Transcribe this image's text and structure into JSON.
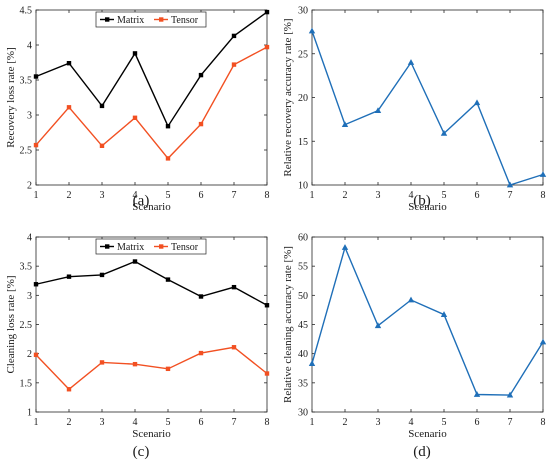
{
  "colors": {
    "matrix": "#000000",
    "tensor": "#f25022",
    "relative": "#1f6fb8"
  },
  "chart_data": [
    {
      "id": "a",
      "type": "line",
      "panel_label": "(a)",
      "xlabel": "Scenario",
      "ylabel": "Recovery loss rate [%]",
      "x": [
        1,
        2,
        3,
        4,
        5,
        6,
        7,
        8
      ],
      "xlim": [
        1,
        8
      ],
      "ylim": [
        2,
        4.5
      ],
      "yticks": [
        2,
        2.5,
        3,
        3.5,
        4,
        4.5
      ],
      "ytick_labels": [
        "2",
        "2.5",
        "3",
        "3.5",
        "4",
        "4.5"
      ],
      "legend_position": "top-center",
      "series": [
        {
          "name": "Matrix",
          "color": "#000000",
          "marker": "square",
          "values": [
            3.55,
            3.74,
            3.13,
            3.88,
            2.84,
            3.57,
            4.13,
            4.47
          ]
        },
        {
          "name": "Tensor",
          "color": "#f25022",
          "marker": "square",
          "values": [
            2.57,
            3.11,
            2.56,
            2.96,
            2.38,
            2.87,
            3.72,
            3.97
          ]
        }
      ]
    },
    {
      "id": "b",
      "type": "line",
      "panel_label": "(b)",
      "xlabel": "Scenario",
      "ylabel": "Relative recovery accuracy rate [%]",
      "x": [
        1,
        2,
        3,
        4,
        5,
        6,
        7,
        8
      ],
      "xlim": [
        1,
        8
      ],
      "ylim": [
        10,
        30
      ],
      "yticks": [
        10,
        15,
        20,
        25,
        30
      ],
      "ytick_labels": [
        "10",
        "15",
        "20",
        "25",
        "30"
      ],
      "series": [
        {
          "color": "#1f6fb8",
          "marker": "triangle",
          "values": [
            27.6,
            16.9,
            18.5,
            24.0,
            15.9,
            19.4,
            10.0,
            11.2
          ]
        }
      ]
    },
    {
      "id": "c",
      "type": "line",
      "panel_label": "(c)",
      "xlabel": "Scenario",
      "ylabel": "Cleaning loss rate [%]",
      "x": [
        1,
        2,
        3,
        4,
        5,
        6,
        7,
        8
      ],
      "xlim": [
        1,
        8
      ],
      "ylim": [
        1,
        4
      ],
      "yticks": [
        1,
        1.5,
        2,
        2.5,
        3,
        3.5,
        4
      ],
      "ytick_labels": [
        "1",
        "1.5",
        "2",
        "2.5",
        "3",
        "3.5",
        "4"
      ],
      "legend_position": "top-center",
      "series": [
        {
          "name": "Matrix",
          "color": "#000000",
          "marker": "square",
          "values": [
            3.19,
            3.32,
            3.35,
            3.58,
            3.27,
            2.98,
            3.14,
            2.83
          ]
        },
        {
          "name": "Tensor",
          "color": "#f25022",
          "marker": "square",
          "values": [
            1.98,
            1.39,
            1.85,
            1.82,
            1.74,
            2.01,
            2.11,
            1.66
          ]
        }
      ]
    },
    {
      "id": "d",
      "type": "line",
      "panel_label": "(d)",
      "xlabel": "Scenario",
      "ylabel": "Relative cleaning accuracy rate [%]",
      "x": [
        1,
        2,
        3,
        4,
        5,
        6,
        7,
        8
      ],
      "xlim": [
        1,
        8
      ],
      "ylim": [
        30,
        60
      ],
      "yticks": [
        30,
        35,
        40,
        45,
        50,
        55,
        60
      ],
      "ytick_labels": [
        "30",
        "35",
        "40",
        "45",
        "50",
        "55",
        "60"
      ],
      "series": [
        {
          "color": "#1f6fb8",
          "marker": "triangle",
          "values": [
            38.3,
            58.2,
            44.8,
            49.2,
            46.7,
            33.0,
            32.9,
            42.0
          ]
        }
      ]
    }
  ]
}
